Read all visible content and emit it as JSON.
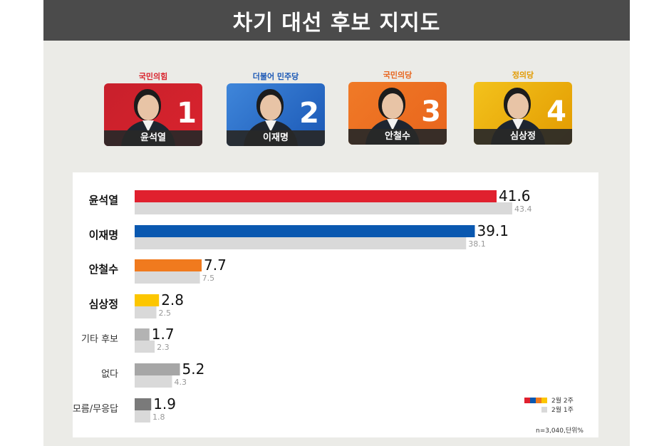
{
  "title": "차기 대선 후보 지지도",
  "candidates": [
    {
      "party": "국민의힘",
      "name": "윤석열",
      "number": "1",
      "party_color": "#d9232d",
      "card_color": "#c8202c"
    },
    {
      "party": "더불어 민주당",
      "name": "이재명",
      "number": "2",
      "party_color": "#1a57b5",
      "card_color": "#3f86da"
    },
    {
      "party": "국민의당",
      "name": "안철수",
      "number": "3",
      "party_color": "#e8641c",
      "card_color": "#f07a27"
    },
    {
      "party": "정의당",
      "name": "심상정",
      "number": "4",
      "party_color": "#e29a00",
      "card_color": "#f3c21c"
    }
  ],
  "chart_data": {
    "type": "bar",
    "orientation": "horizontal",
    "categories": [
      "윤석열",
      "이재명",
      "안철수",
      "심상정",
      "기타 후보",
      "없다",
      "모름/무응답"
    ],
    "series": [
      {
        "name": "2월 2주",
        "values": [
          41.6,
          39.1,
          7.7,
          2.8,
          1.7,
          5.2,
          1.9
        ],
        "colors": [
          "#e0202e",
          "#0a58b0",
          "#f07a1e",
          "#fcc600",
          "#b3b3b3",
          "#a6a6a6",
          "#7a7a7a"
        ]
      },
      {
        "name": "2월 1주",
        "values": [
          43.4,
          38.1,
          7.5,
          2.5,
          2.3,
          4.3,
          1.8
        ],
        "colors": [
          "#d9d9d9",
          "#d9d9d9",
          "#d9d9d9",
          "#d9d9d9",
          "#d9d9d9",
          "#d9d9d9",
          "#d9d9d9"
        ]
      }
    ],
    "bold_categories": [
      "윤석열",
      "이재명",
      "안철수",
      "심상정"
    ],
    "xlim": [
      0,
      50
    ],
    "grid": false,
    "legend_position": "bottom-right"
  },
  "legend": {
    "current_label": "2월 2주",
    "previous_label": "2월 1주",
    "current_swatch_colors": [
      "#e0202e",
      "#0a58b0",
      "#f07a1e",
      "#fcc600"
    ],
    "previous_color": "#d9d9d9"
  },
  "note": "n=3,040,단위%"
}
